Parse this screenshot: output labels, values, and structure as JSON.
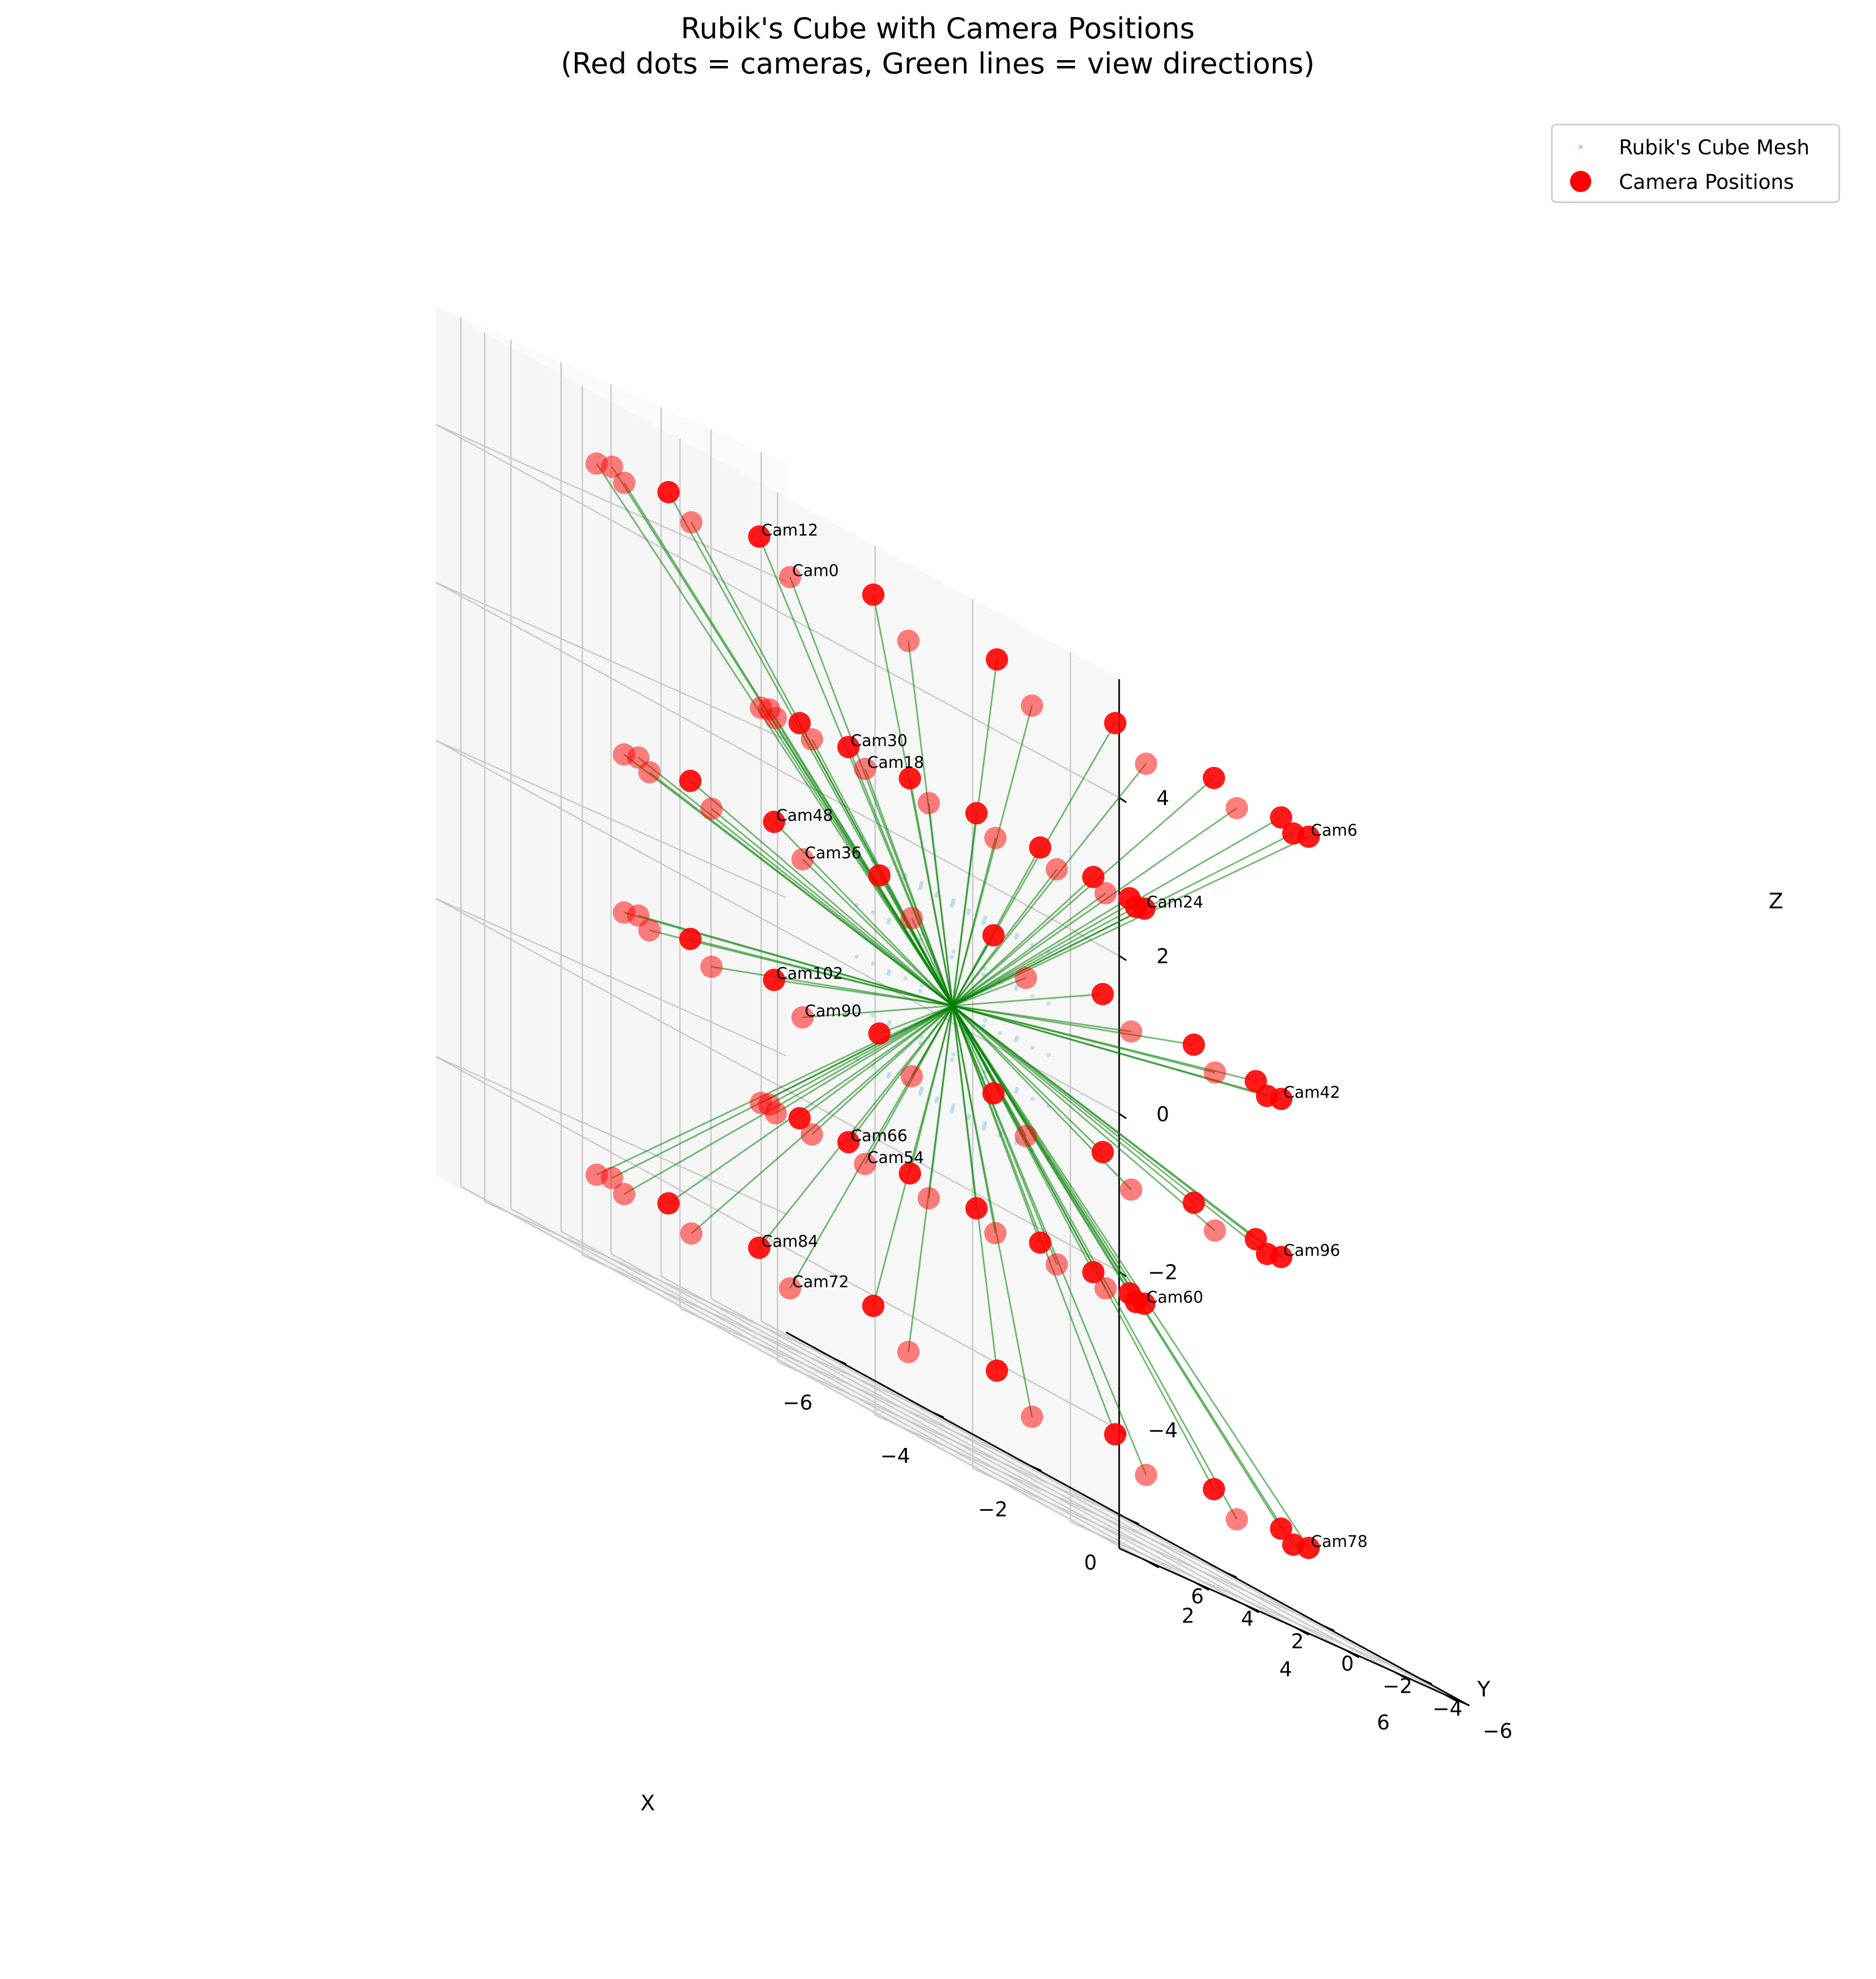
{
  "chart_data": {
    "type": "scatter",
    "title_line1": "Rubik's Cube with Camera Positions",
    "title_line2": "(Red dots = cameras, Green lines = view directions)",
    "xlabel": "X",
    "ylabel": "Y",
    "zlabel": "Z",
    "xticks": [
      "−6",
      "−4",
      "−2",
      "0",
      "2",
      "4",
      "6"
    ],
    "yticks": [
      "−6",
      "−4",
      "−2",
      "0",
      "2",
      "4",
      "6"
    ],
    "zticks": [
      "−4",
      "−2",
      "0",
      "2",
      "4"
    ],
    "xlim": [
      -7,
      7
    ],
    "ylim": [
      -7,
      7
    ],
    "zlim": [
      -5.5,
      5.5
    ],
    "grid": true,
    "legend_position": "top-right",
    "legend": [
      {
        "label": "Rubik's Cube Mesh",
        "marker": "dot",
        "color": "#add8e6"
      },
      {
        "label": "Camera Positions",
        "marker": "circle",
        "color": "#ff0000"
      }
    ],
    "colors": {
      "camera": "#ff0000",
      "view_line": "#008000",
      "mesh": "#add8e6"
    },
    "camera_count": 108,
    "camera_rings": [
      {
        "z": 4.5,
        "radius": 6.5,
        "first_index": 0
      },
      {
        "z": 2.5,
        "radius": 3.5,
        "first_index": 18
      },
      {
        "z": 1.0,
        "radius": 6.0,
        "first_index": 36
      },
      {
        "z": -2.5,
        "radius": 3.5,
        "first_index": 54
      },
      {
        "z": -4.5,
        "radius": 6.5,
        "first_index": 72
      },
      {
        "z": -1.0,
        "radius": 6.0,
        "first_index": 90
      }
    ],
    "camera_labels": [
      {
        "name": "Cam0",
        "index": 0
      },
      {
        "name": "Cam6",
        "index": 6
      },
      {
        "name": "Cam12",
        "index": 12
      },
      {
        "name": "Cam18",
        "index": 18
      },
      {
        "name": "Cam24",
        "index": 24
      },
      {
        "name": "Cam30",
        "index": 30
      },
      {
        "name": "Cam36",
        "index": 36
      },
      {
        "name": "Cam42",
        "index": 42
      },
      {
        "name": "Cam48",
        "index": 48
      },
      {
        "name": "Cam54",
        "index": 54
      },
      {
        "name": "Cam60",
        "index": 60
      },
      {
        "name": "Cam66",
        "index": 66
      },
      {
        "name": "Cam72",
        "index": 72
      },
      {
        "name": "Cam78",
        "index": 78
      },
      {
        "name": "Cam84",
        "index": 84
      },
      {
        "name": "Cam90",
        "index": 90
      },
      {
        "name": "Cam96",
        "index": 96
      },
      {
        "name": "Cam102",
        "index": 102
      }
    ],
    "view_target": [
      0,
      0,
      0
    ]
  }
}
